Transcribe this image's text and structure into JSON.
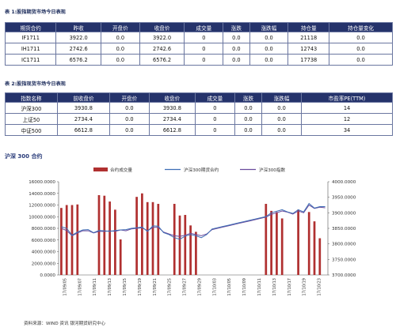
{
  "table1": {
    "title": "表 1:股指期货市场今日表现",
    "headers": [
      "期货合约",
      "昨收",
      "开盘价",
      "收盘价",
      "成交量",
      "涨跌",
      "涨跌幅",
      "持仓量",
      "持仓量变化"
    ],
    "rows": [
      [
        "IF1711",
        "3922.0",
        "0.0",
        "3922.0",
        "0",
        "0.0",
        "0.0",
        "21118",
        "0.0"
      ],
      [
        "IH1711",
        "2742.6",
        "0.0",
        "2742.6",
        "0",
        "0.0",
        "0.0",
        "12743",
        "0.0"
      ],
      [
        "IC1711",
        "6576.2",
        "0.0",
        "6576.2",
        "0",
        "0.0",
        "0.0",
        "17738",
        "0.0"
      ]
    ]
  },
  "table2": {
    "title": "表 2:股指现货市场今日表现",
    "headers": [
      "指数名称",
      "前收盘价",
      "开盘价",
      "收盘价",
      "成交量",
      "涨跌",
      "涨跌幅",
      "市盈率PE(TTM)"
    ],
    "rows": [
      [
        "沪深300",
        "3930.8",
        "0.0",
        "3930.8",
        "0",
        "0.0",
        "0.0",
        "14"
      ],
      [
        "上证50",
        "2734.4",
        "0.0",
        "2734.4",
        "0",
        "0.0",
        "0.0",
        "12"
      ],
      [
        "中证500",
        "6612.8",
        "0.0",
        "6612.8",
        "0",
        "0.0",
        "0.0",
        "34"
      ]
    ]
  },
  "chart_title": "沪深 300 合约",
  "source": "资料来源：WIND 资讯   银河期货研究中心",
  "chart_data": {
    "type": "bar+line",
    "left_axis": {
      "min": 0,
      "max": 16000,
      "ticks": [
        "0.0000",
        "2000.0000",
        "4000.0000",
        "6000.0000",
        "8000.0000",
        "10000.0000",
        "12000.0000",
        "14000.0000",
        "16000.0000"
      ]
    },
    "right_axis": {
      "min": 3700,
      "max": 4000,
      "ticks": [
        "3700.0000",
        "3750.0000",
        "3800.0000",
        "3850.0000",
        "3900.0000",
        "3950.0000",
        "4000.0000"
      ]
    },
    "x_tick_labels": [
      "17/09/05",
      "17/09/07",
      "17/09/11",
      "17/09/13",
      "17/09/15",
      "17/09/19",
      "17/09/21",
      "17/09/25",
      "17/09/27",
      "17/09/29",
      "17/10/03",
      "17/10/05",
      "17/10/09",
      "17/10/11",
      "17/10/13",
      "17/10/17",
      "17/10/19",
      "17/10/23"
    ],
    "legend": [
      {
        "name": "合约成交量",
        "color": "#b03030"
      },
      {
        "name": "沪深300期货合约",
        "color": "#3d6db5"
      },
      {
        "name": "沪深300指数",
        "color": "#6a4b9c"
      }
    ],
    "categories": 50,
    "volume": [
      11500,
      12000,
      12000,
      12100,
      null,
      null,
      null,
      13700,
      13600,
      12600,
      11200,
      6100,
      null,
      null,
      13400,
      14000,
      12500,
      12500,
      12200,
      null,
      null,
      12200,
      10200,
      10300,
      8500,
      7400,
      null,
      null,
      null,
      null,
      null,
      null,
      null,
      null,
      null,
      null,
      null,
      null,
      12200,
      11000,
      10800,
      9700,
      null,
      null,
      11200,
      null,
      10800,
      9200,
      6300,
      null
    ],
    "futures": [
      3855,
      3850,
      3828,
      3838,
      3845,
      3846,
      3836,
      3843,
      3842,
      3840,
      3843,
      3845,
      3846,
      3850,
      3852,
      3854,
      3840,
      3858,
      3857,
      3836,
      3830,
      3820,
      3815,
      3825,
      3830,
      3826,
      3820,
      3830,
      3848,
      3852,
      3856,
      3860,
      3864,
      3868,
      3872,
      3876,
      3880,
      3884,
      3888,
      3900,
      3905,
      3910,
      3903,
      3898,
      3910,
      3903,
      3930,
      3915,
      3920,
      3920
    ],
    "index": [
      3850,
      3843,
      3826,
      3835,
      3842,
      3842,
      3835,
      3840,
      3840,
      3842,
      3840,
      3845,
      3842,
      3848,
      3850,
      3852,
      3842,
      3853,
      3853,
      3838,
      3832,
      3826,
      3824,
      3828,
      3834,
      3830,
      3826,
      3832,
      3846,
      3850,
      3854,
      3858,
      3862,
      3866,
      3870,
      3874,
      3878,
      3882,
      3886,
      3895,
      3900,
      3906,
      3902,
      3896,
      3906,
      3900,
      3925,
      3914,
      3918,
      3916
    ]
  }
}
